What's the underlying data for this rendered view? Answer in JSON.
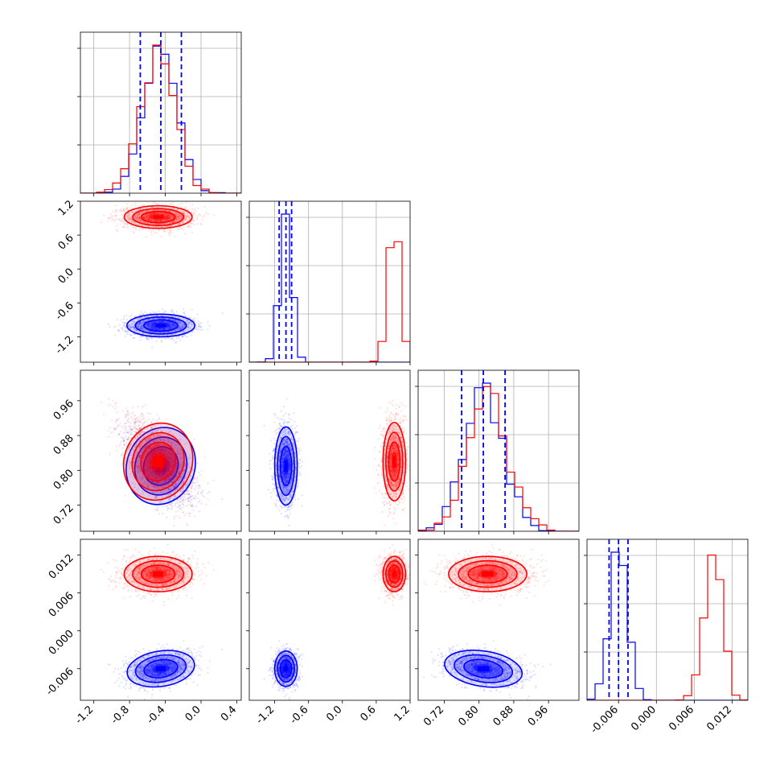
{
  "chart_data": {
    "type": "scatter",
    "layout": "corner plot",
    "n_params": 4,
    "colors": {
      "series_a": "#0000ff",
      "series_b": "#ff0000",
      "quantile_lines": "#0000ff",
      "grid": "#b0b0b0"
    },
    "series": [
      {
        "color": "blue",
        "means": [
          -0.45,
          -1.0,
          0.81,
          -0.006
        ],
        "stds": [
          0.19,
          0.1,
          0.045,
          0.0014
        ],
        "corr_01": 0.0,
        "corr_02": -0.6,
        "corr_12": 0.0,
        "corr_03": 0.25,
        "corr_13": 0.0,
        "corr_23": -0.25
      },
      {
        "color": "red",
        "means": [
          -0.48,
          0.92,
          0.82,
          0.009
        ],
        "stds": [
          0.19,
          0.1,
          0.045,
          0.0014
        ],
        "corr_01": 0.0,
        "corr_02": -0.6,
        "corr_12": 0.0,
        "corr_03": 0.0,
        "corr_13": 0.0,
        "corr_23": 0.0
      }
    ],
    "axis_ranges": [
      [
        -1.35,
        0.45
      ],
      [
        -1.65,
        1.2
      ],
      [
        0.66,
        1.03
      ],
      [
        -0.011,
        0.0145
      ]
    ],
    "ticks": [
      [
        "-1.2",
        "-0.8",
        "-0.4",
        "0.0",
        "0.4"
      ],
      [
        "-1.2",
        "-0.6",
        "0.0",
        "0.6",
        "1.2"
      ],
      [
        "0.72",
        "0.80",
        "0.88",
        "0.96"
      ],
      [
        "-0.006",
        "0.000",
        "0.006",
        "0.012"
      ]
    ],
    "tick_values": [
      [
        -1.2,
        -0.8,
        -0.4,
        0.0,
        0.4
      ],
      [
        -1.2,
        -0.6,
        0.0,
        0.6,
        1.2
      ],
      [
        0.72,
        0.8,
        0.88,
        0.96
      ],
      [
        -0.006,
        0.0,
        0.006,
        0.012
      ]
    ],
    "quantiles": [
      [
        -0.68,
        -0.45,
        -0.22
      ],
      [
        -1.12,
        -1.0,
        -0.9
      ],
      [
        0.76,
        0.81,
        0.86
      ],
      [
        -0.0075,
        -0.006,
        -0.0045
      ]
    ],
    "hist_bins": 20,
    "grid": true,
    "legend": "none",
    "title": "",
    "xlabel": "",
    "ylabel": ""
  }
}
